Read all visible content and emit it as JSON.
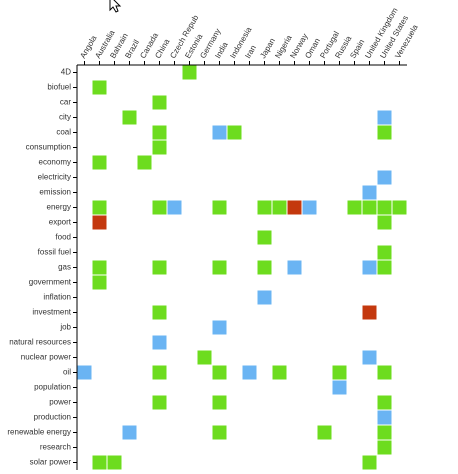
{
  "chart_data": {
    "type": "matrix",
    "columns": [
      "Angola",
      "Australia",
      "Bahrain",
      "Brazil",
      "Canada",
      "China",
      "Czech Repub",
      "Estonia",
      "Germany",
      "India",
      "Indonesia",
      "Iran",
      "Japan",
      "Nigeria",
      "Norway",
      "Oman",
      "Portugal",
      "Russia",
      "Spain",
      "United Kingdom",
      "United States",
      "Venezuela"
    ],
    "rows": [
      "4D",
      "biofuel",
      "car",
      "city",
      "coal",
      "consumption",
      "economy",
      "electricity",
      "emission",
      "energy",
      "export",
      "food",
      "fossil fuel",
      "gas",
      "government",
      "inflation",
      "investment",
      "job",
      "natural resources",
      "nuclear power",
      "oil",
      "population",
      "power",
      "production",
      "renewable energy",
      "research",
      "solar power"
    ],
    "cells": [
      {
        "row": "4D",
        "column": "Estonia",
        "color": "#6ddc1e"
      },
      {
        "row": "biofuel",
        "column": "Australia",
        "color": "#6ddc1e"
      },
      {
        "row": "car",
        "column": "China",
        "color": "#6ddc1e"
      },
      {
        "row": "city",
        "column": "Brazil",
        "color": "#6ddc1e"
      },
      {
        "row": "city",
        "column": "United States",
        "color": "#6ab4f3"
      },
      {
        "row": "coal",
        "column": "China",
        "color": "#6ddc1e"
      },
      {
        "row": "coal",
        "column": "India",
        "color": "#6ab4f3"
      },
      {
        "row": "coal",
        "column": "Indonesia",
        "color": "#6ddc1e"
      },
      {
        "row": "coal",
        "column": "United States",
        "color": "#6ddc1e"
      },
      {
        "row": "consumption",
        "column": "China",
        "color": "#6ddc1e"
      },
      {
        "row": "economy",
        "column": "Australia",
        "color": "#6ddc1e"
      },
      {
        "row": "economy",
        "column": "Canada",
        "color": "#6ddc1e"
      },
      {
        "row": "electricity",
        "column": "United States",
        "color": "#6ab4f3"
      },
      {
        "row": "emission",
        "column": "United Kingdom",
        "color": "#6ab4f3"
      },
      {
        "row": "energy",
        "column": "Australia",
        "color": "#6ddc1e"
      },
      {
        "row": "energy",
        "column": "China",
        "color": "#6ddc1e"
      },
      {
        "row": "energy",
        "column": "Czech Repub",
        "color": "#6ab4f3"
      },
      {
        "row": "energy",
        "column": "India",
        "color": "#6ddc1e"
      },
      {
        "row": "energy",
        "column": "Japan",
        "color": "#6ddc1e"
      },
      {
        "row": "energy",
        "column": "Nigeria",
        "color": "#6ddc1e"
      },
      {
        "row": "energy",
        "column": "Norway",
        "color": "#c4380e"
      },
      {
        "row": "energy",
        "column": "Oman",
        "color": "#6ab4f3"
      },
      {
        "row": "energy",
        "column": "Spain",
        "color": "#6ddc1e"
      },
      {
        "row": "energy",
        "column": "United Kingdom",
        "color": "#6ddc1e"
      },
      {
        "row": "energy",
        "column": "United States",
        "color": "#6ddc1e"
      },
      {
        "row": "energy",
        "column": "Venezuela",
        "color": "#6ddc1e"
      },
      {
        "row": "export",
        "column": "Australia",
        "color": "#c4380e"
      },
      {
        "row": "export",
        "column": "United States",
        "color": "#6ddc1e"
      },
      {
        "row": "food",
        "column": "Japan",
        "color": "#6ddc1e"
      },
      {
        "row": "fossil fuel",
        "column": "United States",
        "color": "#6ddc1e"
      },
      {
        "row": "gas",
        "column": "Australia",
        "color": "#6ddc1e"
      },
      {
        "row": "gas",
        "column": "China",
        "color": "#6ddc1e"
      },
      {
        "row": "gas",
        "column": "India",
        "color": "#6ddc1e"
      },
      {
        "row": "gas",
        "column": "Japan",
        "color": "#6ddc1e"
      },
      {
        "row": "gas",
        "column": "Norway",
        "color": "#6ab4f3"
      },
      {
        "row": "gas",
        "column": "United Kingdom",
        "color": "#6ab4f3"
      },
      {
        "row": "gas",
        "column": "United States",
        "color": "#6ddc1e"
      },
      {
        "row": "government",
        "column": "Australia",
        "color": "#6ddc1e"
      },
      {
        "row": "inflation",
        "column": "Japan",
        "color": "#6ab4f3"
      },
      {
        "row": "investment",
        "column": "China",
        "color": "#6ddc1e"
      },
      {
        "row": "investment",
        "column": "United Kingdom",
        "color": "#c4380e"
      },
      {
        "row": "job",
        "column": "India",
        "color": "#6ab4f3"
      },
      {
        "row": "natural resources",
        "column": "China",
        "color": "#6ab4f3"
      },
      {
        "row": "nuclear power",
        "column": "Germany",
        "color": "#6ddc1e"
      },
      {
        "row": "nuclear power",
        "column": "United Kingdom",
        "color": "#6ab4f3"
      },
      {
        "row": "oil",
        "column": "Angola",
        "color": "#6ab4f3"
      },
      {
        "row": "oil",
        "column": "China",
        "color": "#6ddc1e"
      },
      {
        "row": "oil",
        "column": "India",
        "color": "#6ddc1e"
      },
      {
        "row": "oil",
        "column": "Iran",
        "color": "#6ab4f3"
      },
      {
        "row": "oil",
        "column": "Nigeria",
        "color": "#6ddc1e"
      },
      {
        "row": "oil",
        "column": "Russia",
        "color": "#6ddc1e"
      },
      {
        "row": "oil",
        "column": "United States",
        "color": "#6ddc1e"
      },
      {
        "row": "population",
        "column": "Russia",
        "color": "#6ab4f3"
      },
      {
        "row": "power",
        "column": "China",
        "color": "#6ddc1e"
      },
      {
        "row": "power",
        "column": "India",
        "color": "#6ddc1e"
      },
      {
        "row": "power",
        "column": "United States",
        "color": "#6ddc1e"
      },
      {
        "row": "production",
        "column": "United States",
        "color": "#6ab4f3"
      },
      {
        "row": "renewable energy",
        "column": "Brazil",
        "color": "#6ab4f3"
      },
      {
        "row": "renewable energy",
        "column": "India",
        "color": "#6ddc1e"
      },
      {
        "row": "renewable energy",
        "column": "Portugal",
        "color": "#6ddc1e"
      },
      {
        "row": "renewable energy",
        "column": "United States",
        "color": "#6ddc1e"
      },
      {
        "row": "research",
        "column": "United States",
        "color": "#6ddc1e"
      },
      {
        "row": "solar power",
        "column": "Australia",
        "color": "#6ddc1e"
      },
      {
        "row": "solar power",
        "column": "Bahrain",
        "color": "#6ddc1e"
      },
      {
        "row": "solar power",
        "column": "United Kingdom",
        "color": "#6ddc1e"
      }
    ]
  }
}
